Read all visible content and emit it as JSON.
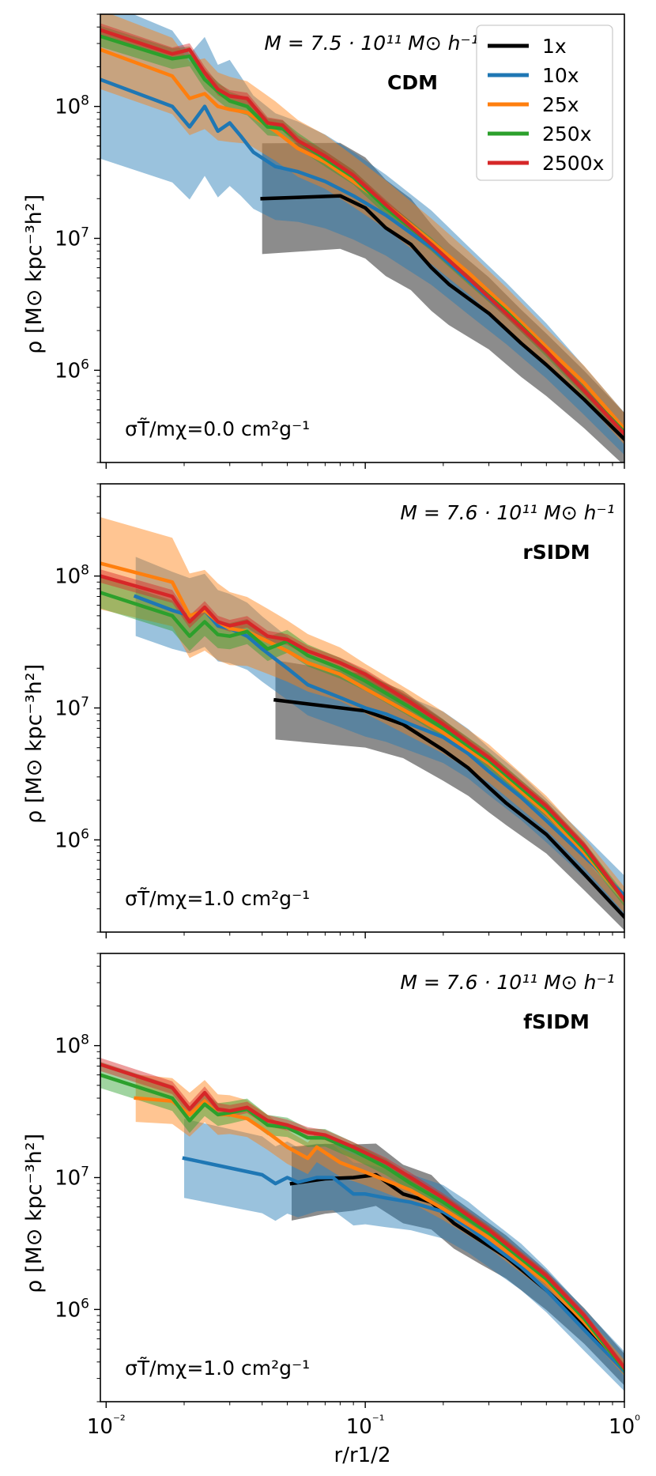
{
  "chart_data": [
    {
      "type": "line",
      "panel": "CDM",
      "title_mass": "M = 7.5 · 10¹¹ M⊙ h⁻¹",
      "label": "CDM",
      "annotation": "σT̃/mχ=0.0 cm²g⁻¹",
      "ylabel": "ρ [M⊙ kpc⁻³h²]",
      "xlabel": "",
      "xscale": "log",
      "yscale": "log",
      "xlim": [
        0.0095,
        1.0
      ],
      "ylim": [
        200000,
        500000000
      ],
      "legend": {
        "placement": "top-right",
        "entries": [
          {
            "name": "1x",
            "color": "#000000"
          },
          {
            "name": "10x",
            "color": "#1f77b4"
          },
          {
            "name": "25x",
            "color": "#ff7f0e"
          },
          {
            "name": "250x",
            "color": "#2ca02c"
          },
          {
            "name": "2500x",
            "color": "#d62728"
          }
        ]
      },
      "series": [
        {
          "name": "1x",
          "color": "#000000",
          "x": [
            0.04,
            0.08,
            0.1,
            0.12,
            0.15,
            0.18,
            0.21,
            0.25,
            0.3,
            0.4,
            0.5,
            0.7,
            1.0
          ],
          "y": [
            20000000,
            21000000,
            17000000,
            12000000,
            9000000,
            6000000,
            4500000,
            3500000,
            2700000,
            1600000,
            1100000,
            600000,
            300000
          ],
          "band": [
            0.42,
            0.2
          ]
        },
        {
          "name": "10x",
          "color": "#1f77b4",
          "x": [
            0.0095,
            0.018,
            0.021,
            0.024,
            0.027,
            0.03,
            0.033,
            0.037,
            0.045,
            0.055,
            0.07,
            0.09,
            0.12,
            0.18,
            0.25,
            0.35,
            0.5,
            0.7,
            1.0
          ],
          "y": [
            160000000,
            100000000,
            70000000,
            100000000,
            65000000,
            75000000,
            60000000,
            45000000,
            35000000,
            32000000,
            27000000,
            21000000,
            15000000,
            8500000,
            4800000,
            2700000,
            1400000,
            700000,
            330000
          ],
          "band": [
            0.6,
            0.16
          ]
        },
        {
          "name": "25x",
          "color": "#ff7f0e",
          "x": [
            0.0095,
            0.018,
            0.021,
            0.024,
            0.027,
            0.03,
            0.035,
            0.045,
            0.055,
            0.07,
            0.09,
            0.12,
            0.18,
            0.25,
            0.35,
            0.5,
            0.7,
            1.0
          ],
          "y": [
            270000000,
            170000000,
            115000000,
            125000000,
            100000000,
            95000000,
            90000000,
            65000000,
            48000000,
            38000000,
            27000000,
            18000000,
            9500000,
            5500000,
            3000000,
            1500000,
            800000,
            360000
          ],
          "band": [
            0.3,
            0.12
          ]
        },
        {
          "name": "250x",
          "color": "#2ca02c",
          "x": [
            0.0095,
            0.018,
            0.021,
            0.024,
            0.027,
            0.03,
            0.035,
            0.042,
            0.048,
            0.055,
            0.07,
            0.09,
            0.12,
            0.18,
            0.25,
            0.35,
            0.5,
            0.7,
            1.0
          ],
          "y": [
            340000000,
            230000000,
            240000000,
            160000000,
            130000000,
            110000000,
            100000000,
            70000000,
            68000000,
            55000000,
            40000000,
            29000000,
            17000000,
            9000000,
            5000000,
            2800000,
            1400000,
            700000,
            340000
          ],
          "band": [
            0.08,
            0.04
          ]
        },
        {
          "name": "2500x",
          "color": "#d62728",
          "x": [
            0.0095,
            0.018,
            0.021,
            0.024,
            0.027,
            0.03,
            0.035,
            0.042,
            0.048,
            0.055,
            0.07,
            0.09,
            0.12,
            0.18,
            0.25,
            0.35,
            0.5,
            0.7,
            1.0
          ],
          "y": [
            380000000,
            250000000,
            270000000,
            180000000,
            135000000,
            120000000,
            115000000,
            75000000,
            72000000,
            55000000,
            42000000,
            30000000,
            18000000,
            9000000,
            5000000,
            2700000,
            1400000,
            700000,
            330000
          ],
          "band": [
            0.05,
            0.03
          ]
        }
      ]
    },
    {
      "type": "line",
      "panel": "rSIDM",
      "title_mass": "M = 7.6 · 10¹¹ M⊙ h⁻¹",
      "label": "rSIDM",
      "annotation": "σT̃/mχ=1.0 cm²g⁻¹",
      "ylabel": "ρ [M⊙ kpc⁻³h²]",
      "xlabel": "",
      "xscale": "log",
      "yscale": "log",
      "xlim": [
        0.0095,
        1.0
      ],
      "ylim": [
        200000,
        500000000
      ],
      "series": [
        {
          "name": "1x",
          "color": "#000000",
          "x": [
            0.045,
            0.1,
            0.14,
            0.2,
            0.25,
            0.3,
            0.35,
            0.5,
            0.7,
            1.0
          ],
          "y": [
            11500000,
            9500000,
            7500000,
            4800000,
            3500000,
            2500000,
            1900000,
            1100000,
            550000,
            260000
          ],
          "band": [
            0.3,
            0.1
          ]
        },
        {
          "name": "10x",
          "color": "#1f77b4",
          "x": [
            0.013,
            0.018,
            0.021,
            0.024,
            0.027,
            0.03,
            0.035,
            0.04,
            0.05,
            0.06,
            0.08,
            0.1,
            0.12,
            0.15,
            0.2,
            0.25,
            0.3,
            0.4,
            0.5,
            0.7,
            1.0
          ],
          "y": [
            70000000,
            55000000,
            50000000,
            55000000,
            42000000,
            40000000,
            35000000,
            28000000,
            20000000,
            15000000,
            12000000,
            10000000,
            9000000,
            7500000,
            6000000,
            4500000,
            3300000,
            2100000,
            1400000,
            750000,
            380000
          ],
          "band": [
            0.3,
            0.15
          ]
        },
        {
          "name": "25x",
          "color": "#ff7f0e",
          "x": [
            0.0095,
            0.018,
            0.021,
            0.024,
            0.027,
            0.03,
            0.035,
            0.042,
            0.05,
            0.06,
            0.08,
            0.1,
            0.15,
            0.2,
            0.3,
            0.5,
            0.7,
            1.0
          ],
          "y": [
            125000000,
            90000000,
            50000000,
            55000000,
            45000000,
            40000000,
            38000000,
            32000000,
            27000000,
            22000000,
            18000000,
            14000000,
            9000000,
            6500000,
            3800000,
            1600000,
            800000,
            350000
          ],
          "band": [
            0.35,
            0.1
          ]
        },
        {
          "name": "250x",
          "color": "#2ca02c",
          "x": [
            0.0095,
            0.018,
            0.021,
            0.024,
            0.027,
            0.03,
            0.035,
            0.042,
            0.05,
            0.06,
            0.08,
            0.1,
            0.15,
            0.2,
            0.3,
            0.5,
            0.7,
            1.0
          ],
          "y": [
            75000000,
            50000000,
            35000000,
            45000000,
            36000000,
            35000000,
            38000000,
            28000000,
            32000000,
            25000000,
            20000000,
            16000000,
            10000000,
            7000000,
            4000000,
            1700000,
            850000,
            350000
          ],
          "band": [
            0.12,
            0.05
          ]
        },
        {
          "name": "2500x",
          "color": "#d62728",
          "x": [
            0.0095,
            0.018,
            0.021,
            0.024,
            0.027,
            0.03,
            0.035,
            0.042,
            0.05,
            0.06,
            0.08,
            0.1,
            0.15,
            0.2,
            0.3,
            0.5,
            0.7,
            1.0
          ],
          "y": [
            100000000,
            70000000,
            45000000,
            58000000,
            45000000,
            42000000,
            45000000,
            35000000,
            33000000,
            27000000,
            22000000,
            18000000,
            11000000,
            7500000,
            4200000,
            1800000,
            900000,
            350000
          ],
          "band": [
            0.05,
            0.03
          ]
        }
      ]
    },
    {
      "type": "line",
      "panel": "fSIDM",
      "title_mass": "M = 7.6 · 10¹¹ M⊙ h⁻¹",
      "label": "fSIDM",
      "annotation": "σT̃/mχ=1.0 cm²g⁻¹",
      "ylabel": "ρ [M⊙ kpc⁻³h²]",
      "xlabel": "r/r1/2",
      "xscale": "log",
      "yscale": "log",
      "xlim": [
        0.0095,
        1.0
      ],
      "ylim": [
        200000,
        500000000
      ],
      "xticks": [
        "10⁻²",
        "10⁻¹",
        "10⁰"
      ],
      "series": [
        {
          "name": "1x",
          "color": "#000000",
          "x": [
            0.052,
            0.07,
            0.09,
            0.11,
            0.14,
            0.18,
            0.22,
            0.28,
            0.35,
            0.5,
            0.7,
            1.0
          ],
          "y": [
            9000000,
            9800000,
            10000000,
            10500000,
            7500000,
            6500000,
            4500000,
            3300000,
            2500000,
            1400000,
            750000,
            350000
          ],
          "band": [
            0.28,
            0.12
          ]
        },
        {
          "name": "10x",
          "color": "#1f77b4",
          "x": [
            0.02,
            0.04,
            0.045,
            0.05,
            0.055,
            0.065,
            0.075,
            0.09,
            0.1,
            0.12,
            0.15,
            0.2,
            0.25,
            0.3,
            0.4,
            0.5,
            0.7,
            1.0
          ],
          "y": [
            14000000,
            10500000,
            9000000,
            10000000,
            9200000,
            10000000,
            10000000,
            7500000,
            7500000,
            7000000,
            6500000,
            5500000,
            4200000,
            3200000,
            2100000,
            1400000,
            700000,
            340000
          ],
          "band": [
            0.3,
            0.15
          ]
        },
        {
          "name": "25x",
          "color": "#ff7f0e",
          "x": [
            0.013,
            0.018,
            0.021,
            0.024,
            0.027,
            0.03,
            0.035,
            0.042,
            0.05,
            0.06,
            0.065,
            0.08,
            0.1,
            0.15,
            0.2,
            0.3,
            0.5,
            0.7,
            1.0
          ],
          "y": [
            40000000,
            38000000,
            30000000,
            38000000,
            30000000,
            30000000,
            28000000,
            22000000,
            17000000,
            14000000,
            17000000,
            13000000,
            11000000,
            8000000,
            5800000,
            3500000,
            1600000,
            800000,
            360000
          ],
          "band": [
            0.18,
            0.06
          ]
        },
        {
          "name": "250x",
          "color": "#2ca02c",
          "x": [
            0.0095,
            0.018,
            0.021,
            0.024,
            0.027,
            0.03,
            0.035,
            0.042,
            0.05,
            0.06,
            0.07,
            0.09,
            0.12,
            0.15,
            0.2,
            0.3,
            0.5,
            0.7,
            1.0
          ],
          "y": [
            60000000,
            40000000,
            27000000,
            36000000,
            30000000,
            31000000,
            33000000,
            25000000,
            24000000,
            20000000,
            20000000,
            16000000,
            12000000,
            9000000,
            6500000,
            3800000,
            1700000,
            850000,
            350000
          ],
          "band": [
            0.1,
            0.04
          ]
        },
        {
          "name": "2500x",
          "color": "#d62728",
          "x": [
            0.0095,
            0.018,
            0.021,
            0.024,
            0.027,
            0.03,
            0.035,
            0.042,
            0.05,
            0.06,
            0.07,
            0.09,
            0.12,
            0.15,
            0.2,
            0.3,
            0.5,
            0.7,
            1.0
          ],
          "y": [
            72000000,
            48000000,
            33000000,
            44000000,
            33000000,
            32000000,
            34000000,
            27000000,
            25000000,
            22000000,
            21000000,
            17000000,
            13000000,
            10000000,
            7000000,
            4000000,
            1800000,
            900000,
            360000
          ],
          "band": [
            0.05,
            0.03
          ]
        }
      ]
    }
  ]
}
